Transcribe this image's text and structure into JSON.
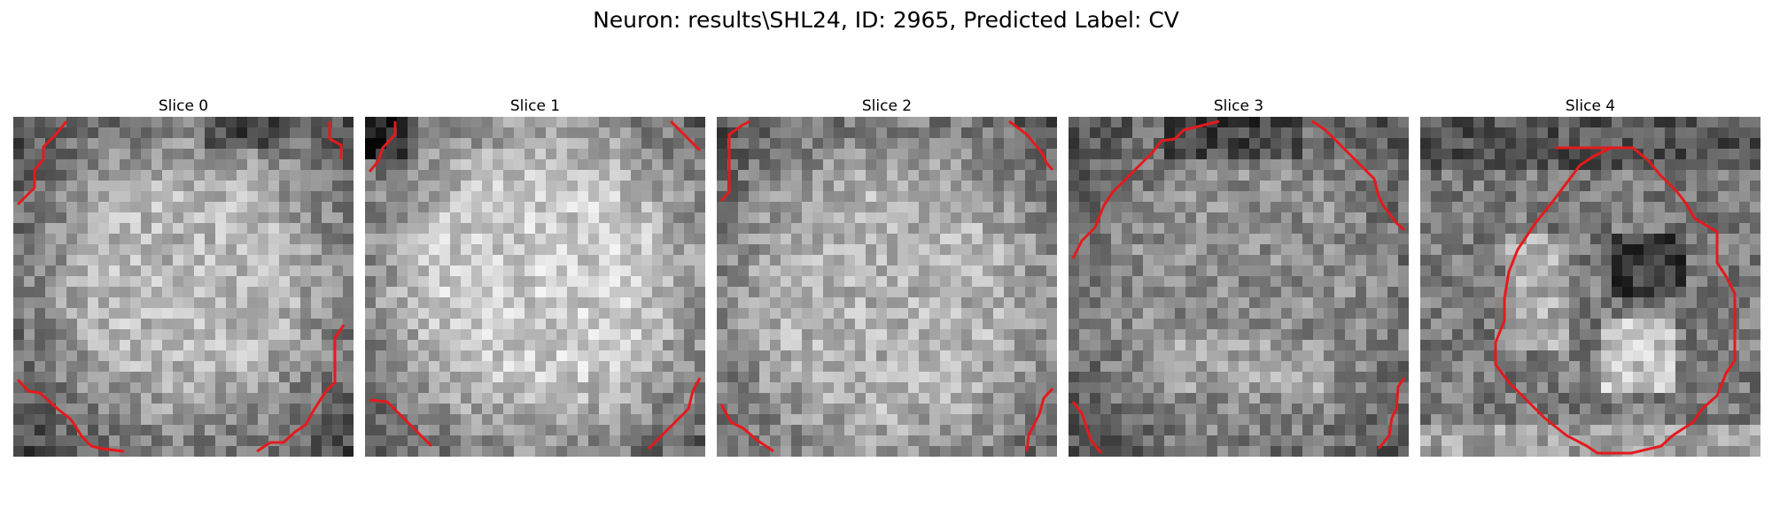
{
  "figure": {
    "title": "Neuron: results\\SHL24, ID: 2965, Predicted Label: CV"
  },
  "colors": {
    "contour": "#e41a1c"
  },
  "icons": {
    "panel_image": "grayscale-microscopy-image"
  },
  "panels": [
    {
      "title": "Slice 0"
    },
    {
      "title": "Slice 1"
    },
    {
      "title": "Slice 2"
    },
    {
      "title": "Slice 3"
    },
    {
      "title": "Slice 4"
    }
  ]
}
